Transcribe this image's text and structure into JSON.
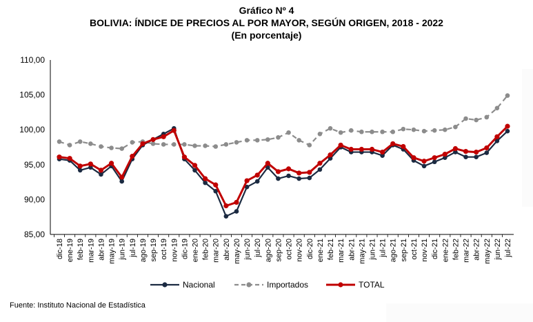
{
  "header": {
    "title": "Gráfico Nº 4",
    "subtitle": "BOLIVIA: ÍNDICE DE PRECIOS AL POR MAYOR, SEGÚN ORIGEN, 2018 - 2022",
    "units": "(En porcentaje)"
  },
  "footer": {
    "source": "Fuente: Instituto Nacional de Estadística"
  },
  "chart_data": {
    "type": "line",
    "title": "BOLIVIA: ÍNDICE DE PRECIOS AL POR MAYOR, SEGÚN ORIGEN, 2018 - 2022",
    "xlabel": "",
    "ylabel": "",
    "ylim": [
      85,
      110
    ],
    "yticks": [
      "85,00",
      "90,00",
      "95,00",
      "100,00",
      "105,00",
      "110,00"
    ],
    "grid": false,
    "legend_position": "bottom",
    "categories": [
      "dic-18",
      "ene-19",
      "feb-19",
      "mar-19",
      "abr-19",
      "may-19",
      "jun-19",
      "jul-19",
      "ago-19",
      "sep-19",
      "oct-19",
      "nov-19",
      "dic-19",
      "ene-20",
      "feb-20",
      "mar-20",
      "abr-20",
      "may-20",
      "jun-20",
      "jul-20",
      "ago-20",
      "sep-20",
      "oct-20",
      "nov-20",
      "dic-20",
      "ene-21",
      "feb-21",
      "mar-21",
      "abr-21",
      "may-21",
      "jun-21",
      "jul-21",
      "ago-21",
      "sep-21",
      "oct-21",
      "nov-21",
      "dic-21",
      "ene-22",
      "feb-22",
      "mar-22",
      "abr-22",
      "may-22",
      "jun-22",
      "jul-22"
    ],
    "series": [
      {
        "name": "Nacional",
        "color": "#1b2a41",
        "dash": false,
        "values": [
          95.8,
          95.6,
          94.2,
          94.6,
          93.6,
          94.8,
          92.6,
          95.8,
          97.8,
          98.6,
          99.4,
          100.2,
          95.8,
          94.2,
          92.4,
          91.2,
          87.6,
          88.3,
          91.8,
          92.6,
          94.6,
          93.0,
          93.4,
          93.0,
          93.1,
          94.3,
          95.9,
          97.5,
          96.8,
          96.8,
          96.8,
          96.3,
          97.8,
          97.2,
          95.6,
          94.8,
          95.4,
          96.0,
          96.8,
          96.1,
          96.1,
          96.7,
          98.4,
          99.8
        ]
      },
      {
        "name": "Importados",
        "color": "#8c8c8c",
        "dash": true,
        "values": [
          98.3,
          97.8,
          98.3,
          98.0,
          97.6,
          97.4,
          97.3,
          98.2,
          98.3,
          98.0,
          97.9,
          97.9,
          97.9,
          97.7,
          97.7,
          97.6,
          97.9,
          98.2,
          98.5,
          98.5,
          98.6,
          98.9,
          99.6,
          98.5,
          97.8,
          99.4,
          100.2,
          99.6,
          99.9,
          99.7,
          99.7,
          99.7,
          99.7,
          100.1,
          100.0,
          99.8,
          99.9,
          100.0,
          100.4,
          101.6,
          101.4,
          101.8,
          103.1,
          104.9
        ]
      },
      {
        "name": "TOTAL",
        "color": "#c00000",
        "dash": false,
        "values": [
          96.1,
          95.9,
          94.8,
          95.1,
          94.2,
          95.2,
          93.2,
          96.2,
          98.0,
          98.6,
          99.0,
          99.9,
          96.1,
          94.9,
          93.0,
          92.1,
          89.1,
          89.6,
          92.7,
          93.5,
          95.2,
          94.0,
          94.4,
          93.8,
          93.9,
          95.2,
          96.4,
          97.8,
          97.2,
          97.2,
          97.2,
          96.8,
          98.0,
          97.6,
          96.0,
          95.5,
          96.0,
          96.5,
          97.3,
          96.9,
          96.8,
          97.4,
          99.0,
          100.5
        ]
      }
    ]
  }
}
